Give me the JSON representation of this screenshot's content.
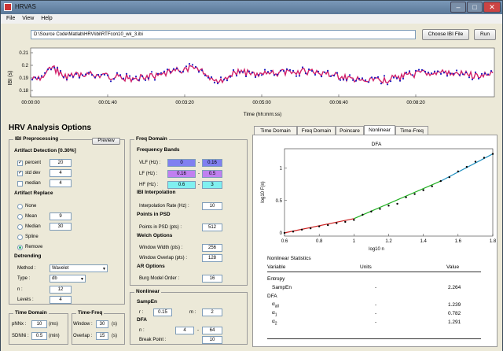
{
  "window": {
    "title": "HRVAS"
  },
  "menu": [
    "File",
    "View",
    "Help"
  ],
  "ibi_file": {
    "path": "D:\\Source Code\\Matlab\\HRV\\ibi\\RTFcon10_wk_3.ibi",
    "choose_label": "Choose IBI File",
    "run_label": "Run"
  },
  "ibi_plot": {
    "ylabel": "IBI (s)",
    "xlabel": "Time (hh:mm:ss)",
    "yticks": [
      "0.21",
      "0.2",
      "0.19",
      "0.18"
    ],
    "xticks": [
      "00:00:00",
      "00:01:40",
      "00:03:20",
      "00:05:00",
      "00:06:40",
      "00:08:20"
    ]
  },
  "options": {
    "title": "HRV Analysis Options",
    "preview_label": "Preview",
    "ibi_pre": {
      "title": "IBI Preprocessing",
      "artifact_detection": "Artifact Detection [0.30%]",
      "percent": {
        "label": "percent",
        "value": "20",
        "checked": true
      },
      "stddev": {
        "label": "std dev",
        "value": "4",
        "checked": true
      },
      "median": {
        "label": "median",
        "value": "4",
        "checked": false
      },
      "artifact_replace": "Artifact Replace",
      "replace": [
        {
          "label": "None",
          "value": ""
        },
        {
          "label": "Mean",
          "value": "9"
        },
        {
          "label": "Median",
          "value": "30"
        },
        {
          "label": "Spline",
          "value": ""
        },
        {
          "label": "Remove",
          "value": ""
        }
      ],
      "detrending": "Detrending",
      "method_label": "Method :",
      "method": "Wavelet",
      "type_label": "Type :",
      "type": "db",
      "n_label": "n :",
      "n": "12",
      "levels_label": "Levels :",
      "levels": "4"
    },
    "time_domain": {
      "title": "Time Domain",
      "pnnx_label": "pNNx :",
      "pnnx": "10",
      "pnnx_unit": "(ms)",
      "sdnni_label": "SDNNi :",
      "sdnni": "0.5",
      "sdnni_unit": "(min)"
    },
    "time_freq": {
      "title": "Time-Freq",
      "window_label": "Window :",
      "window": "30",
      "window_unit": "(s)",
      "overlap_label": "Overlap :",
      "overlap": "15",
      "overlap_unit": "(s)"
    },
    "freq": {
      "title": "Freq Domain",
      "bands": "Frequency Bands",
      "vlf": {
        "label": "VLF (Hz) :",
        "lo": "0",
        "hi": "0.16",
        "color": "#8080f0"
      },
      "lf": {
        "label": "LF (Hz) :",
        "lo": "0.16",
        "hi": "0.5",
        "color": "#c080f0"
      },
      "hf": {
        "label": "HF (Hz) :",
        "lo": "0.6",
        "hi": "3",
        "color": "#80f0f0"
      },
      "dash": "-",
      "ibi_interp": "IBI Interpolation",
      "interp_label": "Interpolation Rate (Hz) :",
      "interp": "10",
      "points": "Points in PSD",
      "points_label": "Points in PSD (pts) :",
      "points_val": "512",
      "welch": "Welch Options",
      "ww_label": "Window Width (pts) :",
      "ww": "256",
      "wo_label": "Window Overlap (pts) :",
      "wo": "128",
      "ar": "AR Options",
      "burg_label": "Burg Model Order :",
      "burg": "16"
    },
    "nonlinear": {
      "title": "Nonlinear",
      "sampen": "SampEn",
      "r_label": "r :",
      "r": "0.15",
      "m_label": "m :",
      "m": "2",
      "dfa": "DFA",
      "n_label": "n :",
      "n_lo": "4",
      "n_dash": "-",
      "n_hi": "64",
      "bp_label": "Break Point :",
      "bp": "10"
    }
  },
  "tabs": [
    "Time Domain",
    "Freq Domain",
    "Poincare",
    "Nonlinear",
    "Time-Freq"
  ],
  "active_tab": "Nonlinear",
  "chart_data": {
    "type": "scatter",
    "title": "DFA",
    "xlabel": "log10 n",
    "ylabel": "log10 F(n)",
    "xlim": [
      0.6,
      1.8
    ],
    "ylim": [
      -0.05,
      1.3
    ],
    "xticks": [
      "0.6",
      "0.8",
      "1",
      "1.2",
      "1.4",
      "1.6",
      "1.8"
    ],
    "yticks": [
      "0",
      "0.5",
      "1"
    ],
    "series": [
      {
        "name": "",
        "points": [
          [
            0.6,
            0.0
          ],
          [
            0.65,
            0.02
          ],
          [
            0.7,
            0.05
          ],
          [
            0.75,
            0.07
          ],
          [
            0.8,
            0.1
          ],
          [
            0.85,
            0.12
          ],
          [
            0.9,
            0.15
          ],
          [
            0.95,
            0.17
          ],
          [
            1.0,
            0.2
          ],
          [
            1.05,
            0.28
          ],
          [
            1.1,
            0.33
          ],
          [
            1.15,
            0.37
          ],
          [
            1.2,
            0.42
          ],
          [
            1.25,
            0.45
          ],
          [
            1.3,
            0.55
          ],
          [
            1.35,
            0.6
          ],
          [
            1.4,
            0.66
          ],
          [
            1.45,
            0.72
          ],
          [
            1.5,
            0.8
          ],
          [
            1.55,
            0.86
          ],
          [
            1.6,
            0.95
          ],
          [
            1.65,
            1.02
          ],
          [
            1.7,
            1.1
          ],
          [
            1.75,
            1.16
          ],
          [
            1.8,
            1.22
          ]
        ]
      }
    ],
    "fit_colors": {
      "alpha1": "#cc2020",
      "alpha2": "#20b020",
      "all": "#2090c0"
    }
  },
  "nl_stats": {
    "title": "Nonlinear Statistics",
    "col_var": "Variable",
    "col_units": "Units",
    "col_value": "Value",
    "entropy": "Entropy",
    "sampen": "SampEn",
    "sampen_units": "-",
    "sampen_val": "2.264",
    "dfa": "DFA",
    "alpha_all": {
      "label": "α",
      "sub": "all",
      "units": "-",
      "value": "1.239"
    },
    "alpha1": {
      "label": "α",
      "sub": "1",
      "units": "-",
      "value": "0.782"
    },
    "alpha2": {
      "label": "α",
      "sub": "2",
      "units": "-",
      "value": "1.291"
    }
  }
}
